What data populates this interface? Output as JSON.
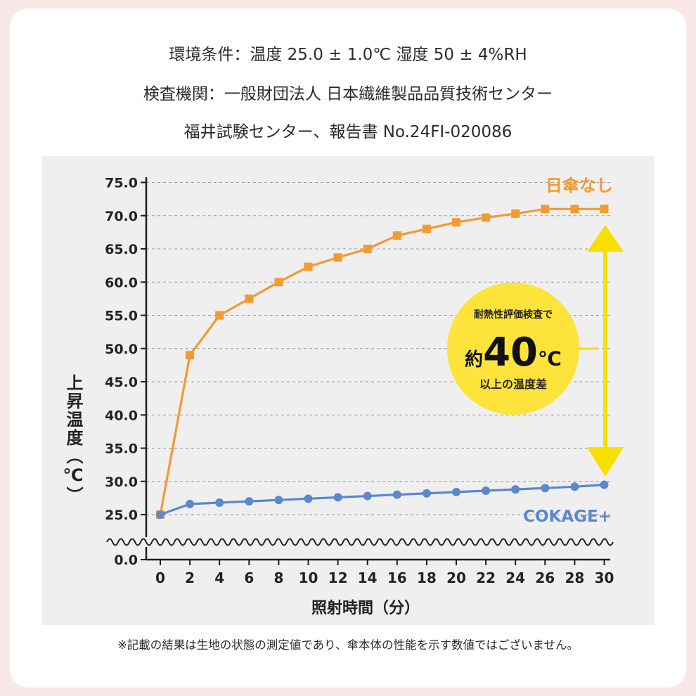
{
  "header": {
    "line1": "環境条件：温度 25.0 ± 1.0℃ 湿度 50 ± 4%RH",
    "line2": "検査機関：一般財団法人 日本繊維製品品質技術センター",
    "line3": "福井試験センター、報告書 No.24FI-020086"
  },
  "footnote": "※記載の結果は生地の状態の測定値であり、傘本体の性能を示す数値ではございません。",
  "callout": {
    "line1": "耐熱性評価検査で",
    "prefix": "約",
    "number": "40",
    "unit": "℃",
    "line3": "以上の温度差"
  },
  "colors": {
    "orange": "#f39a32",
    "blue": "#5b87cf",
    "yellow": "#f7e000",
    "yellow_badge": "#fde33a",
    "axis": "#1e1e1e",
    "grid": "#9a9a9a"
  },
  "chart_data": {
    "type": "line",
    "title": "",
    "xlabel": "照射時間（分）",
    "ylabel": "上昇温度（℃）",
    "x": [
      0,
      2,
      4,
      6,
      8,
      10,
      12,
      14,
      16,
      18,
      20,
      22,
      24,
      26,
      28,
      30
    ],
    "xticks": [
      "0",
      "2",
      "4",
      "6",
      "8",
      "10",
      "12",
      "14",
      "16",
      "18",
      "20",
      "22",
      "24",
      "26",
      "28",
      "30"
    ],
    "yticks": [
      "0.0",
      "25.0",
      "30.0",
      "35.0",
      "40.0",
      "45.0",
      "50.0",
      "55.0",
      "60.0",
      "65.0",
      "70.0",
      "75.0"
    ],
    "ylim": [
      0,
      75
    ],
    "axis_break": "between 0.0 and 25.0",
    "grid": true,
    "series": [
      {
        "name": "日傘なし",
        "color": "#f39a32",
        "marker": "square",
        "values": [
          25.0,
          49.0,
          55.0,
          57.5,
          60.0,
          62.3,
          63.7,
          65.0,
          67.0,
          68.0,
          69.0,
          69.7,
          70.3,
          71.0,
          71.0,
          71.0
        ]
      },
      {
        "name": "COKAGE+",
        "color": "#5b87cf",
        "marker": "circle",
        "values": [
          25.0,
          26.6,
          26.8,
          27.0,
          27.2,
          27.4,
          27.6,
          27.8,
          28.0,
          28.2,
          28.4,
          28.6,
          28.8,
          29.0,
          29.2,
          29.5
        ]
      }
    ]
  }
}
